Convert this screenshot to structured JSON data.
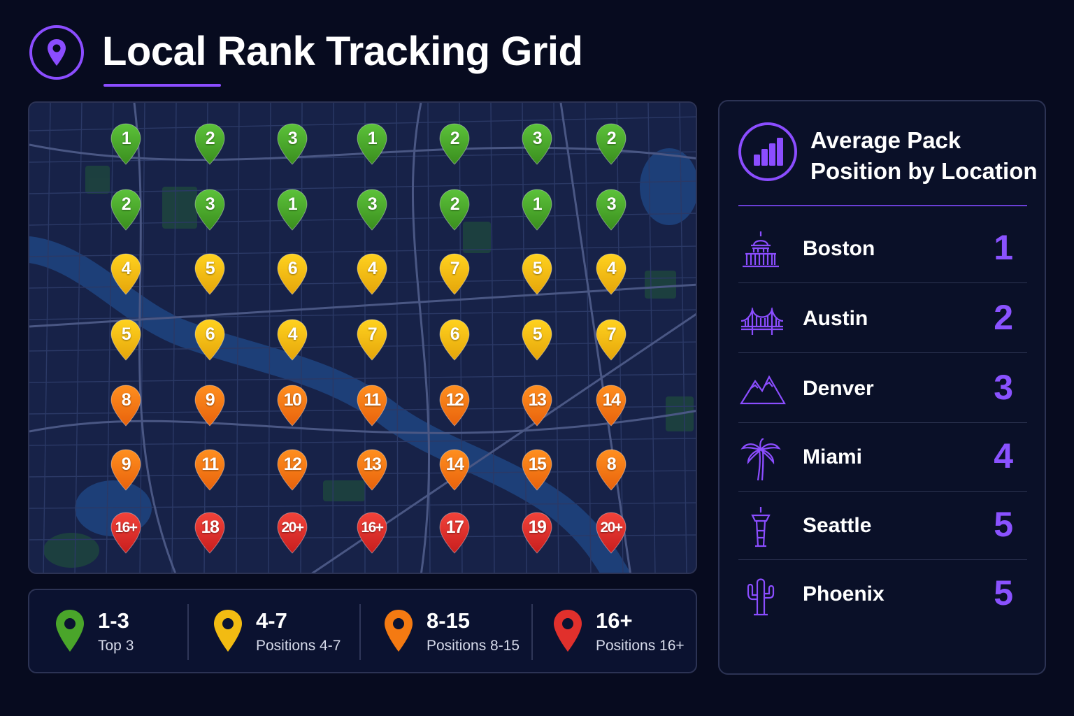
{
  "header": {
    "title": "Local Rank Tracking Grid",
    "icon": "location-pin-icon",
    "accent": "#8b4dff"
  },
  "grid": {
    "rows": [
      [
        "1",
        "2",
        "3",
        "1",
        "2",
        "3",
        "2"
      ],
      [
        "2",
        "3",
        "1",
        "3",
        "2",
        "1",
        "3"
      ],
      [
        "4",
        "5",
        "6",
        "4",
        "7",
        "5",
        "4"
      ],
      [
        "5",
        "6",
        "4",
        "7",
        "6",
        "5",
        "7"
      ],
      [
        "8",
        "9",
        "10",
        "11",
        "12",
        "13",
        "14"
      ],
      [
        "9",
        "11",
        "12",
        "13",
        "14",
        "15",
        "8"
      ],
      [
        "16+",
        "18",
        "20+",
        "16+",
        "17",
        "19",
        "20+"
      ]
    ]
  },
  "legend": {
    "items": [
      {
        "range": "1-3",
        "label": "Top 3",
        "color": "#4aa52a"
      },
      {
        "range": "4-7",
        "label": "Positions 4-7",
        "color": "#f2bb12"
      },
      {
        "range": "8-15",
        "label": "Positions 8-15",
        "color": "#f47a12"
      },
      {
        "range": "16+",
        "label": "Positions 16+",
        "color": "#e1302c"
      }
    ]
  },
  "sidebar": {
    "title_line1": "Average Pack",
    "title_line2": "Position by Location",
    "icon": "bar-chart-icon",
    "locations": [
      {
        "name": "Boston",
        "value": "1",
        "icon": "capitol-icon"
      },
      {
        "name": "Austin",
        "value": "2",
        "icon": "bridge-icon"
      },
      {
        "name": "Denver",
        "value": "3",
        "icon": "mountains-icon"
      },
      {
        "name": "Miami",
        "value": "4",
        "icon": "palm-tree-icon"
      },
      {
        "name": "Seattle",
        "value": "5",
        "icon": "space-needle-icon"
      },
      {
        "name": "Phoenix",
        "value": "5",
        "icon": "cactus-icon"
      }
    ]
  }
}
